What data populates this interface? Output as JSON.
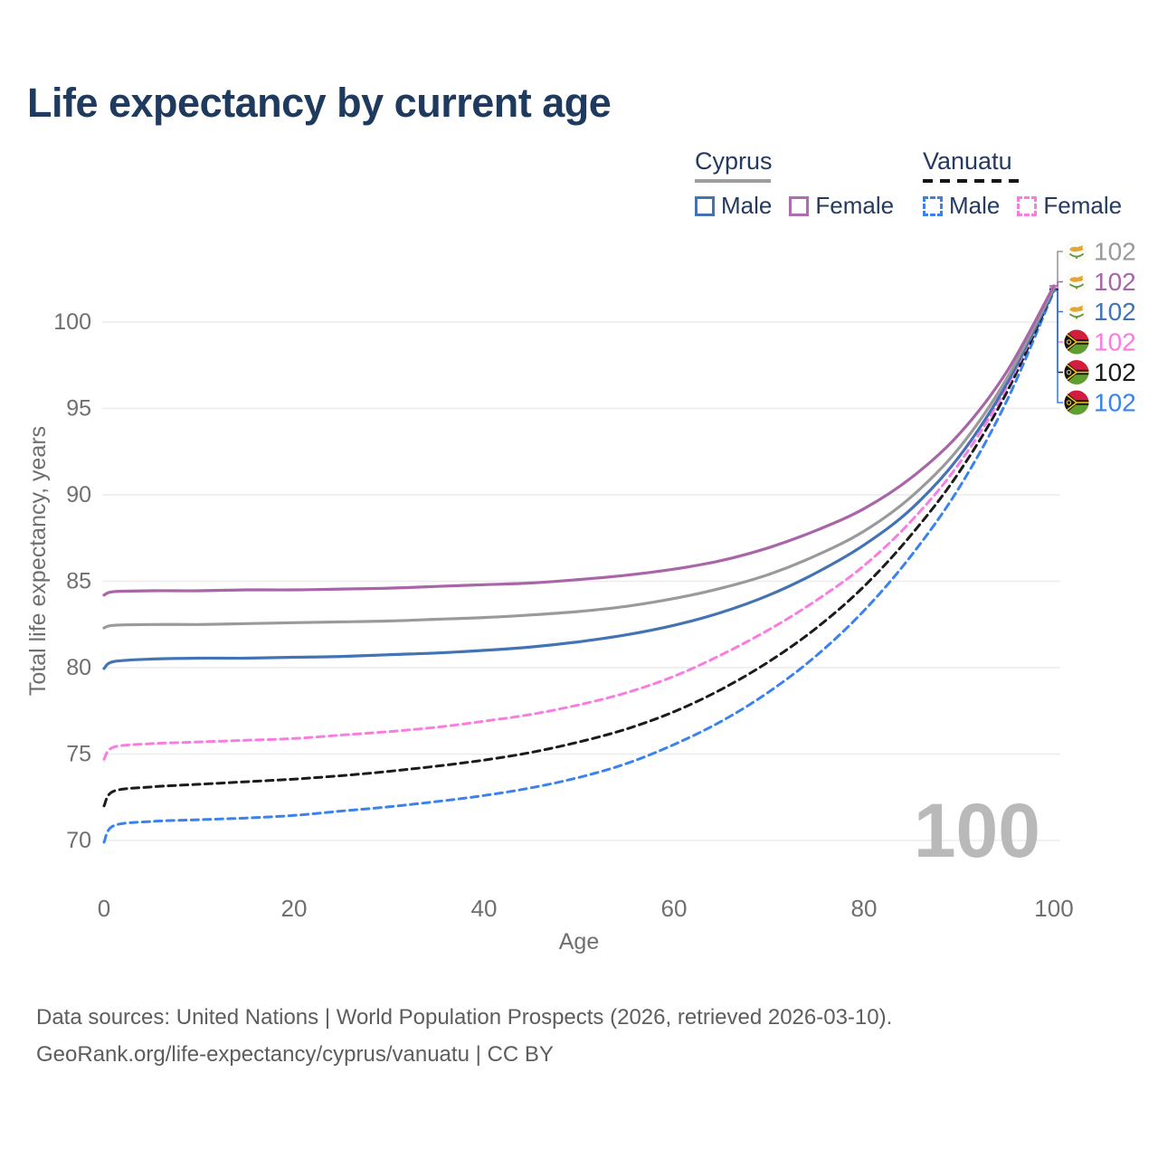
{
  "title": "Life expectancy by current age",
  "legend": {
    "groups": [
      {
        "name": "Cyprus",
        "line_style": "solid",
        "underline_color": "#9e9e9e",
        "items": [
          {
            "label": "Male",
            "color": "#4273b4",
            "dashed": false
          },
          {
            "label": "Female",
            "color": "#b16bb1",
            "dashed": false
          }
        ]
      },
      {
        "name": "Vanuatu",
        "line_style": "dashed",
        "underline_color": "#141414",
        "items": [
          {
            "label": "Male",
            "color": "#3a82f0",
            "dashed": true
          },
          {
            "label": "Female",
            "color": "#fb7ce0",
            "dashed": true
          }
        ]
      }
    ]
  },
  "chart_data": {
    "type": "line",
    "title": "Life expectancy by current age",
    "xlabel": "Age",
    "ylabel": "Total life expectancy, years",
    "xlim": [
      0,
      100
    ],
    "ylim": [
      68.5,
      103
    ],
    "xticks": [
      0,
      20,
      40,
      60,
      80,
      100
    ],
    "yticks": [
      70,
      75,
      80,
      85,
      90,
      95,
      100
    ],
    "grid": "horizontal-only",
    "legend_position": "top-right",
    "ages": [
      0,
      1,
      5,
      10,
      15,
      20,
      25,
      30,
      35,
      40,
      45,
      50,
      55,
      60,
      65,
      70,
      75,
      80,
      85,
      90,
      95,
      100
    ],
    "series": [
      {
        "name": "Vanuatu Male",
        "color": "#3a82f0",
        "dashed": true,
        "values": [
          69.9,
          70.85,
          71.1,
          71.2,
          71.3,
          71.45,
          71.7,
          71.95,
          72.25,
          72.6,
          73.05,
          73.65,
          74.45,
          75.55,
          76.9,
          78.6,
          80.7,
          83.3,
          86.5,
          90.4,
          95.4,
          101.8
        ]
      },
      {
        "name": "Vanuatu Both sexes",
        "color": "#1b1b1b",
        "dashed": true,
        "values": [
          72.0,
          72.85,
          73.1,
          73.25,
          73.4,
          73.55,
          73.75,
          74.0,
          74.3,
          74.65,
          75.1,
          75.7,
          76.45,
          77.45,
          78.75,
          80.35,
          82.3,
          84.7,
          87.7,
          91.3,
          95.9,
          101.9
        ]
      },
      {
        "name": "Vanuatu Female",
        "color": "#fb7ce0",
        "dashed": true,
        "values": [
          74.7,
          75.4,
          75.6,
          75.7,
          75.8,
          75.9,
          76.1,
          76.3,
          76.55,
          76.9,
          77.3,
          77.85,
          78.55,
          79.5,
          80.75,
          82.2,
          83.9,
          85.9,
          88.5,
          91.8,
          96.2,
          102.0
        ]
      },
      {
        "name": "Cyprus Male",
        "color": "#4273b4",
        "dashed": false,
        "values": [
          79.95,
          80.35,
          80.5,
          80.55,
          80.55,
          80.6,
          80.65,
          80.75,
          80.85,
          81.0,
          81.2,
          81.5,
          81.9,
          82.45,
          83.2,
          84.2,
          85.5,
          87.1,
          89.2,
          92.2,
          96.4,
          101.9
        ]
      },
      {
        "name": "Cyprus Both sexes",
        "color": "#9a9a9a",
        "dashed": false,
        "values": [
          82.3,
          82.45,
          82.5,
          82.5,
          82.55,
          82.6,
          82.65,
          82.7,
          82.8,
          82.9,
          83.05,
          83.25,
          83.55,
          84.0,
          84.6,
          85.4,
          86.5,
          87.9,
          89.9,
          92.7,
          96.7,
          102.0
        ]
      },
      {
        "name": "Cyprus Female",
        "color": "#a865a8",
        "dashed": false,
        "values": [
          84.2,
          84.4,
          84.45,
          84.45,
          84.5,
          84.5,
          84.55,
          84.6,
          84.7,
          84.8,
          84.9,
          85.1,
          85.35,
          85.7,
          86.2,
          86.95,
          87.95,
          89.2,
          91.0,
          93.5,
          97.1,
          102.1
        ]
      }
    ],
    "end_labels": [
      {
        "value": "102",
        "end_value": 102.0,
        "color": "#9a9a9a",
        "flag": "cyprus",
        "series": "Cyprus Both sexes"
      },
      {
        "value": "102",
        "end_value": 102.1,
        "color": "#a865a8",
        "flag": "cyprus",
        "series": "Cyprus Female"
      },
      {
        "value": "102",
        "end_value": 101.9,
        "color": "#4273b4",
        "flag": "cyprus",
        "series": "Cyprus Male"
      },
      {
        "value": "102",
        "end_value": 102.0,
        "color": "#fb7ce0",
        "flag": "vanuatu",
        "series": "Vanuatu Female"
      },
      {
        "value": "102",
        "end_value": 101.9,
        "color": "#1b1b1b",
        "flag": "vanuatu",
        "series": "Vanuatu Both sexes"
      },
      {
        "value": "102",
        "end_value": 101.8,
        "color": "#3a82f0",
        "flag": "vanuatu",
        "series": "Vanuatu Male"
      }
    ],
    "age_indicator": "100"
  },
  "footer": {
    "line1": "Data sources: United Nations | World Population Prospects (2026, retrieved 2026-03-10).",
    "line2": "GeoRank.org/life-expectancy/cyprus/vanuatu | CC BY"
  }
}
